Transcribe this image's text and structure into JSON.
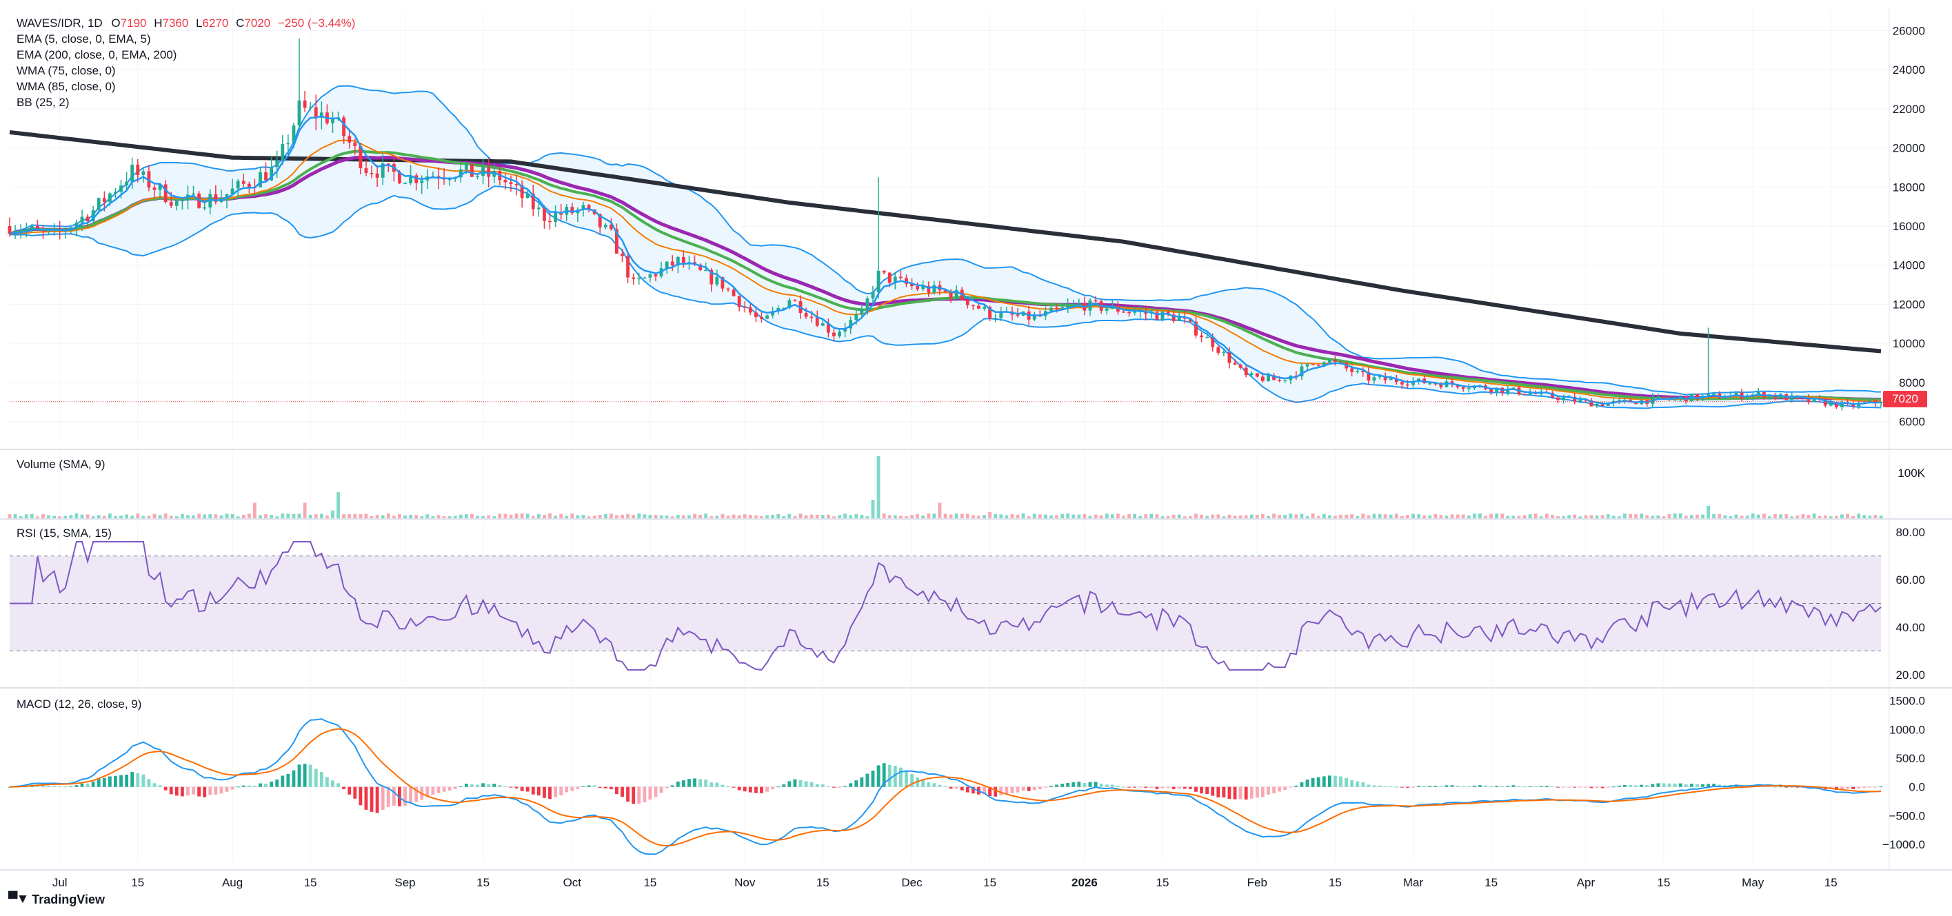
{
  "header": {
    "symbol": "WAVES/IDR, 1D",
    "o_label": "O",
    "o_value": "7190",
    "h_label": "H",
    "h_value": "7360",
    "l_label": "L",
    "l_value": "6270",
    "c_label": "C",
    "c_value": "7020",
    "change": "−250 (−3.44%)"
  },
  "indicators": {
    "ema5": "EMA (5, close, 0, EMA, 5)",
    "ema200": "EMA (200, close, 0, EMA, 200)",
    "wma75": "WMA (75, close, 0)",
    "wma85": "WMA (85, close, 0)",
    "bb": "BB (25, 2)",
    "volume": "Volume (SMA, 9)",
    "rsi": "RSI (15, SMA, 15)",
    "macd": "MACD (12, 26, close, 9)"
  },
  "last_price_label": "7020",
  "branding": "TradingView",
  "colors": {
    "up": "#22ab94",
    "down": "#f23645",
    "up_light": "#7fd9c8",
    "down_light": "#f7a9b3",
    "ema5": "#2196f3",
    "ema200": "#2a2e39",
    "wma75": "#4caf50",
    "wma85": "#9c27b0",
    "ema_orange": "#f57c00",
    "bb": "#2196f3",
    "bb_fill": "#e3f2fd",
    "rsi_line": "#7e57c2",
    "rsi_band": "#ede7f6",
    "macd_line": "#2196f3",
    "signal_line": "#ff6d00"
  },
  "chart_data": {
    "type": "candlestick",
    "x_axis": {
      "ticks": [
        "Jul",
        "15",
        "Aug",
        "15",
        "Sep",
        "15",
        "Oct",
        "15",
        "Nov",
        "15",
        "Dec",
        "15",
        "2026",
        "15",
        "Feb",
        "15",
        "Mar",
        "15",
        "Apr",
        "15",
        "May",
        "15"
      ],
      "tick_days": [
        9,
        23,
        40,
        54,
        71,
        85,
        101,
        115,
        132,
        146,
        162,
        176,
        193,
        207,
        224,
        238,
        252,
        266,
        283,
        297,
        313,
        327
      ]
    },
    "price_axis": {
      "range": [
        5000,
        27000
      ],
      "ticks": [
        6000,
        8000,
        10000,
        12000,
        14000,
        16000,
        18000,
        20000,
        22000,
        24000,
        26000
      ]
    },
    "volume_axis": {
      "ticks": [
        "100K"
      ]
    },
    "rsi_axis": {
      "range": [
        15,
        85
      ],
      "ticks": [
        "80.00",
        "60.00",
        "40.00",
        "20.00"
      ],
      "bands": [
        70,
        50,
        30
      ]
    },
    "macd_axis": {
      "range": [
        -1300,
        1700
      ],
      "ticks": [
        "1500.0",
        "1000.0",
        "500.0",
        "0.0",
        "−500.0",
        "−1000.0"
      ]
    },
    "price_keypoints": [
      [
        0,
        16000
      ],
      [
        8,
        15500
      ],
      [
        15,
        16800
      ],
      [
        22,
        18800
      ],
      [
        30,
        17200
      ],
      [
        38,
        17500
      ],
      [
        48,
        19000
      ],
      [
        52,
        22000
      ],
      [
        58,
        21500
      ],
      [
        64,
        19000
      ],
      [
        72,
        18500
      ],
      [
        80,
        18800
      ],
      [
        88,
        18500
      ],
      [
        96,
        16500
      ],
      [
        103,
        16800
      ],
      [
        108,
        15500
      ],
      [
        112,
        13000
      ],
      [
        120,
        14200
      ],
      [
        128,
        13000
      ],
      [
        135,
        11000
      ],
      [
        140,
        12300
      ],
      [
        148,
        10500
      ],
      [
        153,
        11500
      ],
      [
        156,
        13500
      ],
      [
        162,
        12900
      ],
      [
        170,
        12500
      ],
      [
        176,
        11500
      ],
      [
        184,
        11300
      ],
      [
        192,
        12000
      ],
      [
        200,
        11700
      ],
      [
        210,
        11300
      ],
      [
        216,
        10000
      ],
      [
        222,
        8300
      ],
      [
        228,
        8100
      ],
      [
        236,
        9200
      ],
      [
        244,
        8200
      ],
      [
        260,
        7900
      ],
      [
        272,
        7500
      ],
      [
        285,
        6900
      ],
      [
        300,
        7200
      ],
      [
        315,
        7400
      ],
      [
        322,
        7100
      ],
      [
        330,
        6800
      ],
      [
        336,
        7020
      ]
    ],
    "ema200_keypoints": [
      [
        0,
        20800
      ],
      [
        40,
        19500
      ],
      [
        90,
        19300
      ],
      [
        140,
        17200
      ],
      [
        200,
        15200
      ],
      [
        250,
        12700
      ],
      [
        300,
        10500
      ],
      [
        336,
        9600
      ]
    ],
    "volume_spikes": [
      [
        44,
        0.25
      ],
      [
        53,
        0.25
      ],
      [
        59,
        0.42
      ],
      [
        156,
        1.0
      ],
      [
        167,
        0.25
      ],
      [
        176,
        0.1
      ],
      [
        305,
        0.2
      ]
    ],
    "series": [
      {
        "name": "WAVES/IDR",
        "last": 7020
      }
    ]
  }
}
